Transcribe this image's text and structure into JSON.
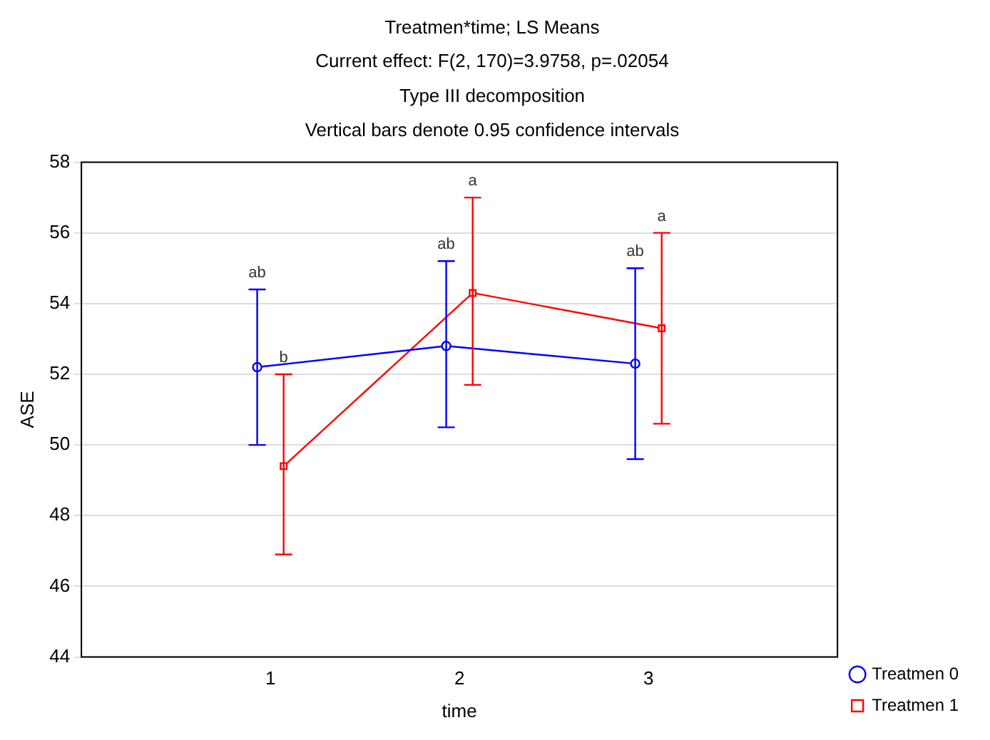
{
  "chart_data": {
    "type": "line",
    "title": "Treatmen*time; LS Means",
    "subtitle": "Current effect: F(2, 170)=3.9758, p=.02054",
    "xlabel": "time",
    "ylabel": "ASE",
    "xlim": [
      0,
      4
    ],
    "xticks": [
      1,
      2,
      3
    ],
    "ylim": [
      44,
      58
    ],
    "yticks": [
      44,
      46,
      48,
      50,
      52,
      54,
      56,
      58
    ],
    "grid": "y",
    "legend": "right bottom",
    "line_style": "solid",
    "series": [
      {
        "name": "Treatmen 0",
        "color": "#0000ff",
        "marker": "circle",
        "x": [
          0.93,
          1.93,
          2.93
        ],
        "values": [
          52.2,
          52.8,
          52.3
        ],
        "errors": [
          [
            50.0,
            54.4
          ],
          [
            50.5,
            55.2
          ],
          [
            49.6,
            55.0
          ]
        ]
      },
      {
        "name": "Treatmen 1",
        "color": "#ff0000",
        "marker": "square",
        "x": [
          1.07,
          2.07,
          3.07
        ],
        "values": [
          49.4,
          54.3,
          53.3
        ],
        "errors": [
          [
            46.9,
            52.0
          ],
          [
            51.7,
            57.0
          ],
          [
            50.6,
            56.0
          ]
        ]
      }
    ],
    "annotations": [
      "Type III decomposition",
      "Vertical bars denote 0.95 confidence intervals",
      {
        "text": "ab",
        "x": 0.93,
        "y": 54.4
      },
      {
        "text": "b",
        "x": 1.07,
        "y": 52.0
      },
      {
        "text": "ab",
        "x": 1.93,
        "y": 55.2
      },
      {
        "text": "a",
        "x": 2.07,
        "y": 57.0
      },
      {
        "text": "ab",
        "x": 2.93,
        "y": 55.0
      },
      {
        "text": "a",
        "x": 3.07,
        "y": 56.0
      }
    ]
  }
}
